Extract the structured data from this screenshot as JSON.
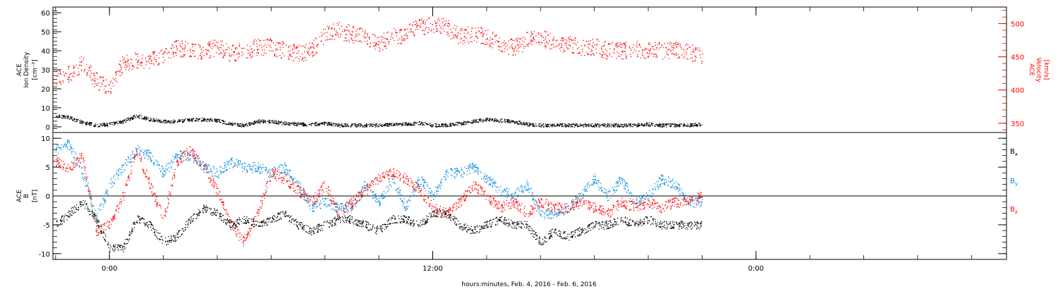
{
  "xlabel": "hours:minutes, Feb.  4, 2016 - Feb.  6, 2016",
  "x_ticks": [
    {
      "label": "0:00",
      "hour": 0
    },
    {
      "label": "12:00",
      "hour": 12
    },
    {
      "label": "0:00",
      "hour": 24
    }
  ],
  "colors": {
    "black": "#000000",
    "red": "#ff0000",
    "blue": "#0088dd"
  },
  "chart_data": [
    {
      "type": "scatter",
      "panel": "top",
      "ylabel_left": [
        "ACE",
        "Ion Density",
        "[cm⁻³]"
      ],
      "ylabel_right": [
        "ACE",
        "Velocity",
        "[km/s]"
      ],
      "x_unit": "hours since Feb 4 0:00",
      "xlim": [
        -2.1,
        33.3
      ],
      "ylim_left": [
        -3,
        63
      ],
      "ylim_right": [
        336,
        525
      ],
      "yticks_left": [
        0,
        10,
        20,
        30,
        40,
        50,
        60
      ],
      "yticks_right": [
        350,
        400,
        450,
        500
      ],
      "series": [
        {
          "name": "Ion Density",
          "axis": "left",
          "color": "#000000",
          "x": [
            -2,
            -1.5,
            -1,
            -0.5,
            0,
            0.5,
            1,
            1.5,
            2,
            2.5,
            3,
            3.5,
            4,
            4.5,
            5,
            5.5,
            6,
            6.5,
            7,
            7.5,
            8,
            8.5,
            9,
            9.5,
            10,
            10.5,
            11,
            11.5,
            12,
            12.5,
            13,
            13.5,
            14,
            14.5,
            15,
            15.5,
            16,
            16.5,
            17,
            17.5,
            18,
            18.5,
            19,
            19.5,
            20,
            20.5,
            21,
            21.5,
            22
          ],
          "y": [
            6,
            5,
            2.5,
            1,
            1.5,
            3,
            6,
            4,
            3,
            3,
            4,
            4,
            3.5,
            1.5,
            1,
            3,
            3,
            2,
            1.5,
            1.5,
            2,
            1,
            1,
            1,
            1,
            1.5,
            1.5,
            2,
            1,
            1,
            2,
            3,
            4,
            3.5,
            3,
            1.5,
            1,
            1,
            1,
            1,
            1,
            1,
            1,
            1,
            1.5,
            1,
            1,
            1,
            1.5
          ]
        },
        {
          "name": "Velocity",
          "axis": "right",
          "color": "#ff0000",
          "x": [
            -2,
            -1.5,
            -1,
            -0.5,
            0,
            0.5,
            1,
            1.5,
            2,
            2.5,
            3,
            3.5,
            4,
            4.5,
            5,
            5.5,
            6,
            6.5,
            7,
            7.5,
            8,
            8.5,
            9,
            9.5,
            10,
            10.5,
            11,
            11.5,
            12,
            12.5,
            13,
            13.5,
            14,
            14.5,
            15,
            15.5,
            16,
            16.5,
            17,
            17.5,
            18,
            18.5,
            19,
            19.5,
            20,
            20.5,
            21,
            21.5,
            22
          ],
          "y": [
            420,
            425,
            440,
            415,
            405,
            440,
            445,
            445,
            450,
            465,
            460,
            460,
            465,
            455,
            460,
            465,
            465,
            460,
            455,
            460,
            485,
            490,
            485,
            480,
            470,
            480,
            485,
            495,
            500,
            495,
            480,
            485,
            480,
            470,
            465,
            475,
            480,
            470,
            470,
            465,
            465,
            460,
            460,
            462,
            460,
            460,
            460,
            458,
            450
          ]
        }
      ]
    },
    {
      "type": "scatter",
      "panel": "bottom",
      "ylabel_left": [
        "ACE",
        "B",
        "[nT]"
      ],
      "x_unit": "hours since Feb 4 0:00",
      "xlim": [
        -2.1,
        33.3
      ],
      "ylim": [
        -11,
        11
      ],
      "yticks": [
        -10,
        -5,
        0,
        5,
        10
      ],
      "zero_line": true,
      "series": [
        {
          "name": "Bx",
          "label_main": "B",
          "label_sub": "x",
          "color": "#000000",
          "x": [
            -2,
            -1.5,
            -1,
            -0.5,
            0,
            0.5,
            1,
            1.5,
            2,
            2.5,
            3,
            3.5,
            4,
            4.5,
            5,
            5.5,
            6,
            6.5,
            7,
            7.5,
            8,
            8.5,
            9,
            9.5,
            10,
            10.5,
            11,
            11.5,
            12,
            12.5,
            13,
            13.5,
            14,
            14.5,
            15,
            15.5,
            16,
            16.5,
            17,
            17.5,
            18,
            18.5,
            19,
            19.5,
            20,
            20.5,
            21,
            21.5,
            22
          ],
          "y": [
            -5,
            -3,
            -1,
            -4,
            -9,
            -9,
            -4,
            -5,
            -8,
            -7,
            -4,
            -2,
            -3,
            -5,
            -4,
            -5,
            -4,
            -3,
            -5,
            -6,
            -5,
            -4,
            -4,
            -5,
            -6,
            -4,
            -4,
            -5,
            -3,
            -3,
            -5,
            -6,
            -5,
            -4,
            -5,
            -5,
            -8,
            -6,
            -7,
            -6,
            -5,
            -5,
            -4,
            -5,
            -4,
            -5,
            -5,
            -5,
            -5
          ]
        },
        {
          "name": "By",
          "label_main": "B",
          "label_sub": "y",
          "color": "#0088dd",
          "x": [
            -2,
            -1.5,
            -1,
            -0.5,
            0,
            0.5,
            1,
            1.5,
            2,
            2.5,
            3,
            3.5,
            4,
            4.5,
            5,
            5.5,
            6,
            6.5,
            7,
            7.5,
            8,
            8.5,
            9,
            9.5,
            10,
            10.5,
            11,
            11.5,
            12,
            12.5,
            13,
            13.5,
            14,
            14.5,
            15,
            15.5,
            16,
            16.5,
            17,
            17.5,
            18,
            18.5,
            19,
            19.5,
            20,
            20.5,
            21,
            21.5,
            22
          ],
          "y": [
            8,
            9,
            4,
            -4,
            2,
            5,
            8,
            7,
            4,
            7,
            7,
            5,
            4,
            6,
            5,
            5,
            4,
            5,
            2,
            -2,
            -1,
            -2,
            -2,
            2,
            -1,
            3,
            -2,
            3,
            0,
            4,
            4,
            5,
            3,
            1,
            0,
            2,
            -3,
            -3,
            -2,
            0,
            3,
            0,
            3,
            -1,
            0,
            3,
            2,
            -1,
            -1
          ]
        },
        {
          "name": "Bz",
          "label_main": "B",
          "label_sub": "z",
          "color": "#ff0000",
          "x": [
            -2,
            -1.5,
            -1,
            -0.5,
            0,
            0.5,
            1,
            1.5,
            2,
            2.5,
            3,
            3.5,
            4,
            4.5,
            5,
            5.5,
            6,
            6.5,
            7,
            7.5,
            8,
            8.5,
            9,
            9.5,
            10,
            10.5,
            11,
            11.5,
            12,
            12.5,
            13,
            13.5,
            14,
            14.5,
            15,
            15.5,
            16,
            16.5,
            17,
            17.5,
            18,
            18.5,
            19,
            19.5,
            20,
            20.5,
            21,
            21.5,
            22
          ],
          "y": [
            6,
            5,
            7,
            -6,
            -5,
            0,
            8,
            2,
            -4,
            6,
            8,
            5,
            1,
            -5,
            -8,
            -3,
            4,
            3,
            1,
            -1,
            2,
            -3,
            -1,
            1,
            3,
            4,
            3,
            1,
            -2,
            -3,
            -1,
            2,
            0,
            -2,
            -1,
            -3,
            -1,
            -2,
            -2,
            -1,
            -2,
            -3,
            -1,
            -2,
            -1,
            -2,
            -1,
            -1,
            0
          ]
        }
      ]
    }
  ]
}
